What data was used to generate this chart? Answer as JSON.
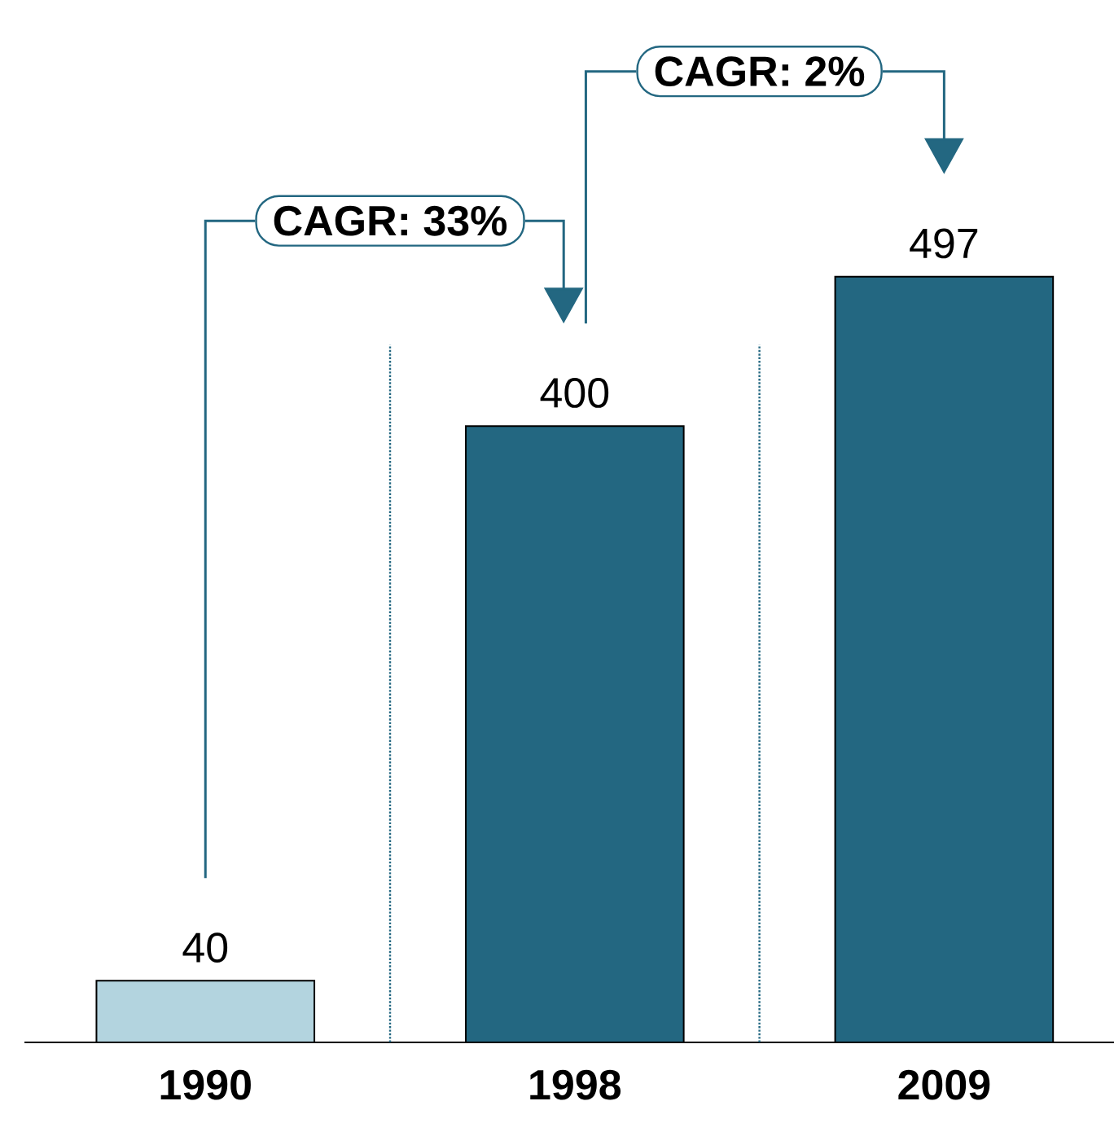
{
  "chart_data": {
    "type": "bar",
    "categories": [
      "1990",
      "1998",
      "2009"
    ],
    "values": [
      40,
      400,
      497
    ],
    "colors": [
      "#b3d4df",
      "#236781",
      "#236781"
    ],
    "data_labels": true,
    "annotations": [
      "CAGR: 33%",
      "CAGR: 2%"
    ]
  }
}
